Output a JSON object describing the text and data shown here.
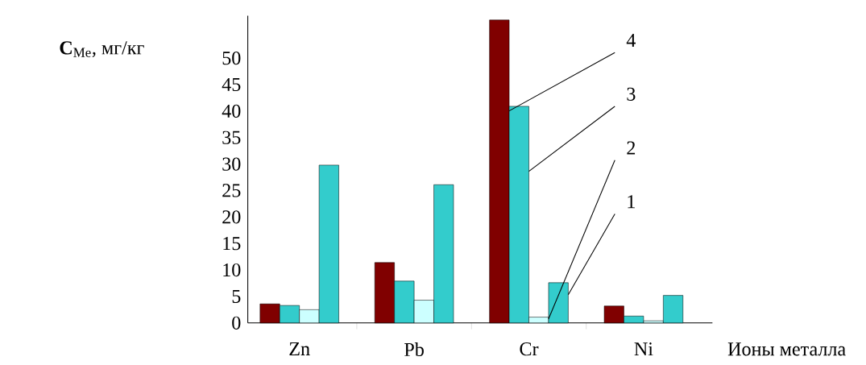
{
  "chart_data": {
    "type": "bar",
    "xlabel": "Ионы металла",
    "ylabel": "**C**$_{Me}$, мг/кг",
    "categories": [
      "Zn",
      "Pb",
      "Cr",
      "Ni"
    ],
    "ylim": [
      0,
      58
    ],
    "yticks": [
      0,
      5,
      10,
      15,
      20,
      25,
      30,
      35,
      40,
      45,
      50
    ],
    "series": [
      {
        "name": "4",
        "color": "#800000",
        "values": [
          3.6,
          11.4,
          57.2,
          3.2
        ]
      },
      {
        "name": "3",
        "color": "#33cccc",
        "values": [
          3.3,
          7.9,
          40.9,
          1.3
        ]
      },
      {
        "name": "2",
        "color": "#ccffff",
        "values": [
          2.5,
          4.3,
          1.1,
          0.4
        ]
      },
      {
        "name": "1",
        "color": "#33cccc",
        "values": [
          29.8,
          26.1,
          7.6,
          5.2
        ]
      }
    ],
    "grid": false
  }
}
